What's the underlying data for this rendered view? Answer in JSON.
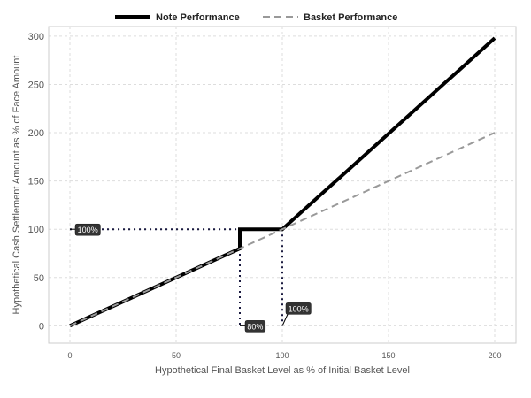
{
  "chart_data": {
    "type": "line",
    "xlabel": "Hypothetical Final Basket Level as % of Initial Basket Level",
    "ylabel": "Hypothetical Cash Settlement Amount as % of Face Amount",
    "xlim": [
      -10,
      210
    ],
    "ylim": [
      -18,
      310
    ],
    "xticks": [
      0,
      50,
      100,
      150,
      200
    ],
    "yticks": [
      0,
      50,
      100,
      150,
      200,
      250,
      300
    ],
    "grid": true,
    "legend_position": "top",
    "series": [
      {
        "name": "Note Performance",
        "color": "#000000",
        "style": "solid",
        "points": [
          [
            0,
            0
          ],
          [
            80,
            80
          ],
          [
            80,
            100
          ],
          [
            100,
            100
          ],
          [
            200,
            298
          ]
        ]
      },
      {
        "name": "Basket Performance",
        "color": "#999999",
        "style": "dashed",
        "points": [
          [
            0,
            0
          ],
          [
            200,
            200
          ]
        ]
      }
    ],
    "reference_lines": [
      {
        "points": [
          [
            0,
            100
          ],
          [
            80,
            100
          ]
        ]
      },
      {
        "points": [
          [
            80,
            80
          ],
          [
            80,
            0
          ]
        ]
      },
      {
        "points": [
          [
            100,
            100
          ],
          [
            100,
            0
          ]
        ]
      }
    ],
    "annotations": [
      {
        "text": "100%",
        "x": 0,
        "y": 100
      },
      {
        "text": "80%",
        "x": 80,
        "y": 0
      },
      {
        "text": "100%",
        "x": 100,
        "y": 0
      }
    ]
  }
}
